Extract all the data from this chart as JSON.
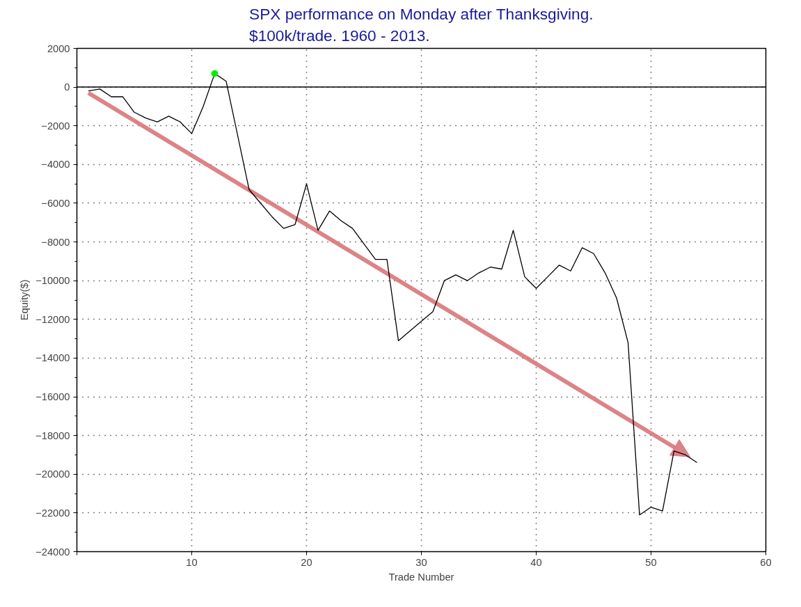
{
  "chart_data": {
    "type": "line",
    "title": "SPX performance on Monday after Thanksgiving.\n$100k/trade. 1960 - 2013.",
    "xlabel": "Trade Number",
    "ylabel": "Equity($)",
    "xlim": [
      0,
      60
    ],
    "xticks": [
      {
        "value": 0,
        "label": null
      },
      10,
      20,
      30,
      40,
      50,
      60
    ],
    "ylim": [
      -24000,
      2000
    ],
    "yticks": [
      -24000,
      -22000,
      -20000,
      -18000,
      -16000,
      -14000,
      -12000,
      -10000,
      -8000,
      -6000,
      -4000,
      -2000,
      0,
      2000
    ],
    "grid": true,
    "series": [
      {
        "color": "#000000",
        "x": [
          1,
          2,
          3,
          4,
          5,
          6,
          7,
          8,
          9,
          10,
          11,
          12,
          13,
          14,
          15,
          16,
          17,
          18,
          19,
          20,
          21,
          22,
          23,
          24,
          25,
          26,
          27,
          28,
          29,
          30,
          31,
          32,
          33,
          34,
          35,
          36,
          37,
          38,
          39,
          40,
          41,
          42,
          43,
          44,
          45,
          46,
          47,
          48,
          49,
          50,
          51,
          52,
          53,
          54
        ],
        "values": [
          -200,
          -100,
          -500,
          -500,
          -1300,
          -1600,
          -1800,
          -1500,
          -1800,
          -2400,
          -1000,
          700,
          300,
          -2500,
          -5300,
          -6000,
          -6700,
          -7300,
          -7100,
          -5000,
          -7400,
          -6400,
          -6900,
          -7300,
          -8100,
          -8900,
          -8900,
          -13100,
          -12600,
          -12100,
          -11600,
          -10000,
          -9700,
          -10000,
          -9600,
          -9300,
          -9400,
          -7400,
          -9800,
          -10400,
          -9800,
          -9200,
          -9500,
          -8300,
          -8600,
          -9600,
          -10900,
          -13200,
          -22100,
          -21700,
          -21900,
          -18800,
          -19000,
          -19400
        ]
      },
      {
        "type": "scatter",
        "color": "#00ee00",
        "marker": "circle",
        "x": [
          12
        ],
        "values": [
          700
        ]
      }
    ],
    "ref_lines": [
      {
        "axis": "y",
        "value": 0,
        "color": "#000000",
        "line_style": "solid"
      }
    ]
  }
}
